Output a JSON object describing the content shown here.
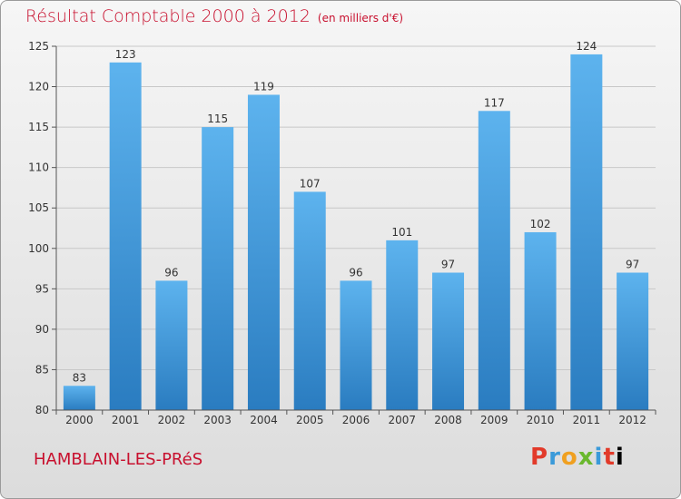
{
  "header": {
    "title": "Résultat Comptable 2000 à 2012",
    "subtitle": "(en milliers d'€)"
  },
  "footer": {
    "commune": "HAMBLAIN-LES-PRéS",
    "brand": "Proxiti"
  },
  "colors": {
    "title": "#c8102e",
    "bar_top": "#5db3ee",
    "bar_bottom": "#2a7cc0"
  },
  "chart_data": {
    "type": "bar",
    "categories": [
      "2000",
      "2001",
      "2002",
      "2003",
      "2004",
      "2005",
      "2006",
      "2007",
      "2008",
      "2009",
      "2010",
      "2011",
      "2012"
    ],
    "values": [
      83,
      123,
      96,
      115,
      119,
      107,
      96,
      101,
      97,
      117,
      102,
      124,
      97
    ],
    "data_labels": [
      "83",
      "123",
      "96",
      "115",
      "119",
      "107",
      "96",
      "101",
      "97",
      "117",
      "102",
      "124",
      "97"
    ],
    "yticks": [
      80,
      85,
      90,
      95,
      100,
      105,
      110,
      115,
      120,
      125
    ],
    "ylim": [
      80,
      125
    ],
    "grid": true,
    "title": "Résultat Comptable 2000 à 2012",
    "subtitle": "(en milliers d'€)",
    "xlabel": "",
    "ylabel": ""
  }
}
